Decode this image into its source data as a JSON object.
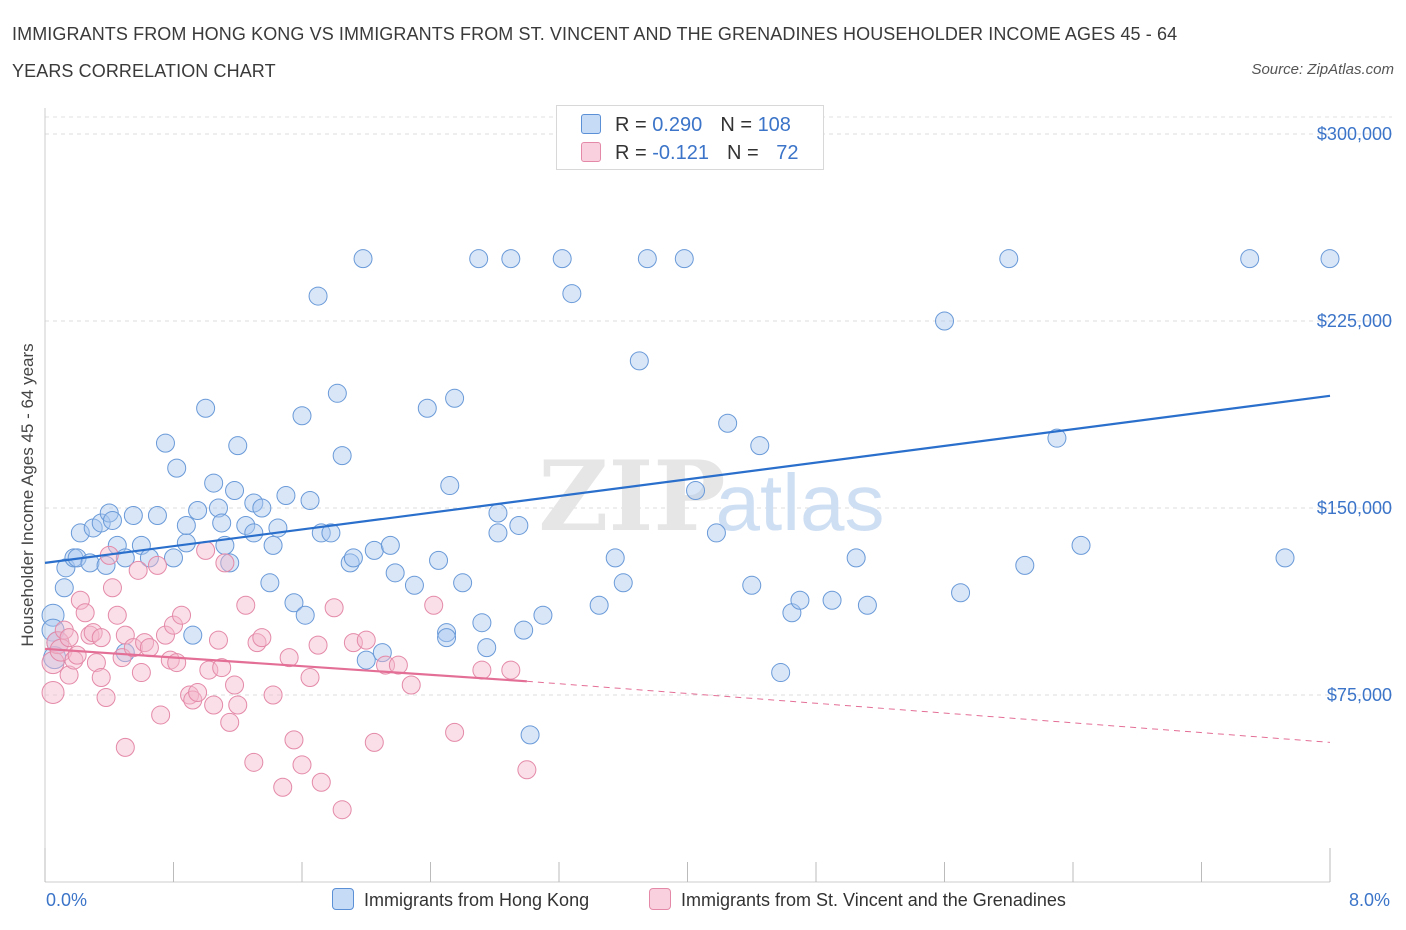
{
  "title": "IMMIGRANTS FROM HONG KONG VS IMMIGRANTS FROM ST. VINCENT AND THE GRENADINES HOUSEHOLDER INCOME AGES 45 - 64 YEARS CORRELATION CHART",
  "source": "Source: ZipAtlas.com",
  "watermark": {
    "zip": "ZIP",
    "atlas": "atlas"
  },
  "legend_top": {
    "rows": [
      {
        "r_label": "R = ",
        "r_value": "0.290",
        "n_label": "N = ",
        "n_value": "108",
        "color": "#a8c8f0"
      },
      {
        "r_label": "R = ",
        "r_value": "-0.121",
        "n_label": "N = ",
        "n_value": "72",
        "color": "#f4b7cb"
      }
    ]
  },
  "colors": {
    "blue_fill": "#a8c8f0",
    "blue_line": "#2a6fcb",
    "pink_fill": "#f4b7cb",
    "pink_line": "#e46f96",
    "tick_text": "#3b74c8"
  },
  "chart_data": {
    "type": "scatter",
    "title": "IMMIGRANTS FROM HONG KONG VS IMMIGRANTS FROM ST. VINCENT AND THE GRENADINES HOUSEHOLDER INCOME AGES 45 - 64 YEARS CORRELATION CHART",
    "xlabel": "",
    "ylabel": "Householder Income Ages 45 - 64 years",
    "xlim": [
      0,
      8.4
    ],
    "ylim": [
      0,
      305000
    ],
    "x_tick_labels": [
      "0.0%",
      "8.0%"
    ],
    "y_ticks": [
      75000,
      150000,
      225000,
      300000
    ],
    "y_tick_labels": [
      "$75,000",
      "$150,000",
      "$225,000",
      "$300,000"
    ],
    "grid": true,
    "legend_position": "bottom",
    "series": [
      {
        "name": "Immigrants from Hong Kong",
        "r": 0.29,
        "n": 108,
        "trend": {
          "x": [
            0.0,
            8.0
          ],
          "y": [
            128000,
            195000
          ],
          "dashed_to": 8.0
        },
        "points": [
          [
            0.05,
            107000
          ],
          [
            0.05,
            101000
          ],
          [
            0.08,
            96000
          ],
          [
            0.06,
            90000
          ],
          [
            0.12,
            118000
          ],
          [
            0.13,
            126000
          ],
          [
            0.18,
            130000
          ],
          [
            0.2,
            130000
          ],
          [
            0.22,
            140000
          ],
          [
            0.28,
            128000
          ],
          [
            0.3,
            142000
          ],
          [
            0.35,
            144000
          ],
          [
            0.38,
            127000
          ],
          [
            0.4,
            148000
          ],
          [
            0.42,
            145000
          ],
          [
            0.45,
            135000
          ],
          [
            0.5,
            92000
          ],
          [
            0.5,
            130000
          ],
          [
            0.55,
            147000
          ],
          [
            0.6,
            135000
          ],
          [
            0.65,
            130000
          ],
          [
            0.7,
            147000
          ],
          [
            0.75,
            176000
          ],
          [
            0.8,
            130000
          ],
          [
            0.82,
            166000
          ],
          [
            0.88,
            136000
          ],
          [
            0.88,
            143000
          ],
          [
            0.92,
            99000
          ],
          [
            0.95,
            149000
          ],
          [
            1.0,
            190000
          ],
          [
            1.05,
            160000
          ],
          [
            1.08,
            150000
          ],
          [
            1.1,
            144000
          ],
          [
            1.12,
            135000
          ],
          [
            1.15,
            128000
          ],
          [
            1.18,
            157000
          ],
          [
            1.2,
            175000
          ],
          [
            1.25,
            143000
          ],
          [
            1.3,
            152000
          ],
          [
            1.3,
            140000
          ],
          [
            1.35,
            150000
          ],
          [
            1.4,
            120000
          ],
          [
            1.42,
            135000
          ],
          [
            1.45,
            142000
          ],
          [
            1.5,
            155000
          ],
          [
            1.55,
            112000
          ],
          [
            1.6,
            187000
          ],
          [
            1.62,
            107000
          ],
          [
            1.65,
            153000
          ],
          [
            1.7,
            235000
          ],
          [
            1.72,
            140000
          ],
          [
            1.78,
            140000
          ],
          [
            1.82,
            196000
          ],
          [
            1.85,
            171000
          ],
          [
            1.9,
            128000
          ],
          [
            1.92,
            130000
          ],
          [
            1.98,
            250000
          ],
          [
            2.0,
            89000
          ],
          [
            2.05,
            133000
          ],
          [
            2.1,
            92000
          ],
          [
            2.15,
            135000
          ],
          [
            2.18,
            124000
          ],
          [
            2.3,
            119000
          ],
          [
            2.38,
            190000
          ],
          [
            2.45,
            129000
          ],
          [
            2.5,
            100000
          ],
          [
            2.5,
            98000
          ],
          [
            2.52,
            159000
          ],
          [
            2.55,
            194000
          ],
          [
            2.6,
            120000
          ],
          [
            2.7,
            250000
          ],
          [
            2.72,
            104000
          ],
          [
            2.75,
            94000
          ],
          [
            2.82,
            148000
          ],
          [
            2.82,
            140000
          ],
          [
            2.9,
            250000
          ],
          [
            2.95,
            143000
          ],
          [
            2.98,
            101000
          ],
          [
            3.02,
            59000
          ],
          [
            3.1,
            107000
          ],
          [
            3.22,
            250000
          ],
          [
            3.28,
            236000
          ],
          [
            3.45,
            111000
          ],
          [
            3.55,
            130000
          ],
          [
            3.6,
            120000
          ],
          [
            3.7,
            209000
          ],
          [
            3.75,
            250000
          ],
          [
            3.98,
            250000
          ],
          [
            4.05,
            157000
          ],
          [
            4.18,
            140000
          ],
          [
            4.25,
            184000
          ],
          [
            4.4,
            119000
          ],
          [
            4.45,
            175000
          ],
          [
            4.58,
            84000
          ],
          [
            4.65,
            108000
          ],
          [
            4.7,
            113000
          ],
          [
            4.9,
            113000
          ],
          [
            5.05,
            130000
          ],
          [
            5.12,
            111000
          ],
          [
            5.6,
            225000
          ],
          [
            5.7,
            116000
          ],
          [
            6.0,
            250000
          ],
          [
            6.1,
            127000
          ],
          [
            6.3,
            178000
          ],
          [
            6.45,
            135000
          ],
          [
            7.5,
            250000
          ],
          [
            7.72,
            130000
          ],
          [
            8.0,
            250000
          ]
        ]
      },
      {
        "name": "Immigrants from St. Vincent and the Grenadines",
        "r": -0.121,
        "n": 72,
        "trend": {
          "x": [
            0.0,
            3.0
          ],
          "y": [
            93500,
            80500
          ],
          "dashed_to": 8.0,
          "dashed_end_y": 56000
        },
        "points": [
          [
            0.05,
            88000
          ],
          [
            0.05,
            76000
          ],
          [
            0.08,
            96000
          ],
          [
            0.1,
            93000
          ],
          [
            0.12,
            101000
          ],
          [
            0.15,
            83000
          ],
          [
            0.15,
            98000
          ],
          [
            0.18,
            89000
          ],
          [
            0.2,
            91000
          ],
          [
            0.22,
            113000
          ],
          [
            0.25,
            108000
          ],
          [
            0.28,
            99000
          ],
          [
            0.3,
            100000
          ],
          [
            0.32,
            88000
          ],
          [
            0.35,
            98000
          ],
          [
            0.35,
            82000
          ],
          [
            0.38,
            74000
          ],
          [
            0.4,
            131000
          ],
          [
            0.42,
            118000
          ],
          [
            0.45,
            107000
          ],
          [
            0.48,
            90000
          ],
          [
            0.5,
            54000
          ],
          [
            0.5,
            99000
          ],
          [
            0.55,
            94000
          ],
          [
            0.58,
            125000
          ],
          [
            0.6,
            84000
          ],
          [
            0.62,
            96000
          ],
          [
            0.65,
            94000
          ],
          [
            0.7,
            127000
          ],
          [
            0.72,
            67000
          ],
          [
            0.75,
            99000
          ],
          [
            0.78,
            89000
          ],
          [
            0.8,
            103000
          ],
          [
            0.82,
            88000
          ],
          [
            0.85,
            107000
          ],
          [
            0.9,
            75000
          ],
          [
            0.92,
            73000
          ],
          [
            0.95,
            76000
          ],
          [
            1.0,
            133000
          ],
          [
            1.02,
            85000
          ],
          [
            1.05,
            71000
          ],
          [
            1.08,
            97000
          ],
          [
            1.1,
            86000
          ],
          [
            1.12,
            128000
          ],
          [
            1.15,
            64000
          ],
          [
            1.18,
            79000
          ],
          [
            1.2,
            71000
          ],
          [
            1.25,
            111000
          ],
          [
            1.3,
            48000
          ],
          [
            1.32,
            96000
          ],
          [
            1.35,
            98000
          ],
          [
            1.42,
            75000
          ],
          [
            1.48,
            38000
          ],
          [
            1.52,
            90000
          ],
          [
            1.55,
            57000
          ],
          [
            1.6,
            47000
          ],
          [
            1.65,
            82000
          ],
          [
            1.7,
            95000
          ],
          [
            1.72,
            40000
          ],
          [
            1.8,
            110000
          ],
          [
            1.85,
            29000
          ],
          [
            1.92,
            96000
          ],
          [
            2.0,
            97000
          ],
          [
            2.05,
            56000
          ],
          [
            2.12,
            87000
          ],
          [
            2.2,
            87000
          ],
          [
            2.28,
            79000
          ],
          [
            2.42,
            111000
          ],
          [
            2.55,
            60000
          ],
          [
            2.72,
            85000
          ],
          [
            2.9,
            85000
          ],
          [
            3.0,
            45000
          ]
        ]
      }
    ]
  },
  "legend_bottom": [
    {
      "label": "Immigrants from Hong Kong",
      "color": "#a8c8f0"
    },
    {
      "label": "Immigrants from St. Vincent and the Grenadines",
      "color": "#f4b7cb"
    }
  ]
}
